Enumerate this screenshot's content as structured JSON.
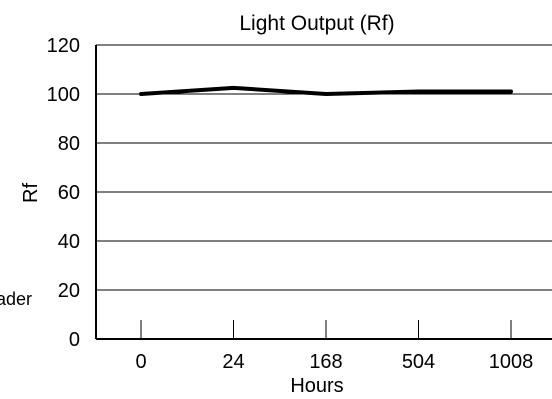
{
  "chart_data": {
    "type": "line",
    "title": "Light Output (Rf)",
    "xlabel": "Hours",
    "ylabel": "Rf",
    "categories": [
      "0",
      "24",
      "168",
      "504",
      "1008"
    ],
    "series": [
      {
        "values": [
          100,
          102.5,
          100,
          101,
          101
        ]
      }
    ],
    "ylim": [
      0,
      120
    ],
    "yticks": [
      0,
      20,
      40,
      60,
      80,
      100,
      120
    ],
    "grid": true,
    "legend": "none",
    "line_color": "#000000",
    "grid_color": "#000000"
  },
  "annotations": {
    "side_text": "ader"
  }
}
